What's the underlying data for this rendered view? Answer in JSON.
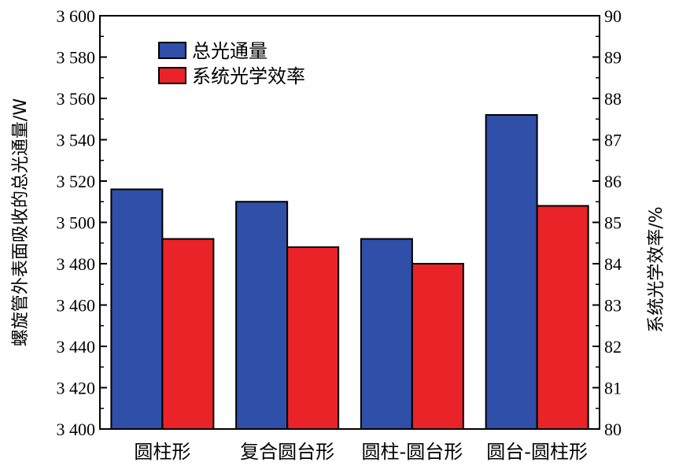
{
  "chart_data": {
    "type": "bar",
    "categories": [
      "圆柱形",
      "复合圆台形",
      "圆柱-圆台形",
      "圆台-圆柱形"
    ],
    "series": [
      {
        "name": "总光通量",
        "axis": "left",
        "color": "#2f4fa8",
        "values": [
          3516,
          3510,
          3492,
          3552
        ]
      },
      {
        "name": "系统光学效率",
        "axis": "right",
        "color": "#ea2328",
        "values": [
          84.6,
          84.4,
          84.0,
          85.4
        ]
      }
    ],
    "ylabel": "螺旋管外表面吸收的总光通量/W",
    "ylabel_right": "系统光学效率/%",
    "ylim": [
      3400,
      3600
    ],
    "ylim_right": [
      80,
      90
    ],
    "yticks": [
      "3 400",
      "3 420",
      "3 440",
      "3 460",
      "3 480",
      "3 500",
      "3 520",
      "3 540",
      "3 560",
      "3 580",
      "3 600"
    ],
    "yticks_right": [
      "80",
      "81",
      "82",
      "83",
      "84",
      "85",
      "86",
      "87",
      "88",
      "89",
      "90"
    ],
    "legend_position": "top-left",
    "grid": false
  }
}
